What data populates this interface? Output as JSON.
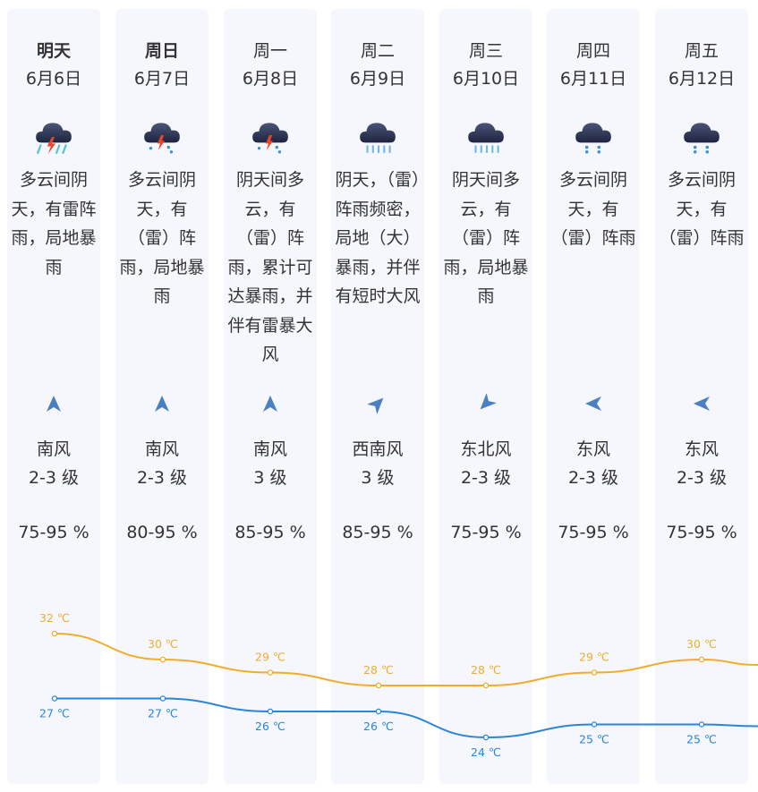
{
  "days": [
    {
      "day": "明天",
      "date": "6月6日",
      "desc": "多云间阴天，有雷阵雨，局地暴雨",
      "icon": "thunderstorm-icon",
      "wind": "南风",
      "level": "2-3 级",
      "humidity": "75-95 %",
      "high": "32 ℃",
      "low": "27 ℃",
      "high_value": 32,
      "low_value": 27,
      "wind_dir_deg": 0
    },
    {
      "day": "周日",
      "date": "6月7日",
      "desc": "多云间阴天，有（雷）阵雨，局地暴雨",
      "icon": "thunder-shower-icon",
      "wind": "南风",
      "level": "2-3 级",
      "humidity": "80-95 %",
      "high": "30 ℃",
      "low": "27 ℃",
      "high_value": 30,
      "low_value": 27,
      "wind_dir_deg": 0
    },
    {
      "day": "周一",
      "date": "6月8日",
      "desc": "阴天间多云，有（雷）阵雨，累计可达暴雨，并伴有雷暴大风",
      "icon": "thunder-shower-icon",
      "wind": "南风",
      "level": "3 级",
      "humidity": "85-95 %",
      "high": "29 ℃",
      "low": "26 ℃",
      "high_value": 29,
      "low_value": 26,
      "wind_dir_deg": 0
    },
    {
      "day": "周二",
      "date": "6月9日",
      "desc": "阴天，（雷）阵雨频密，局地（大）暴雨，并伴有短时大风",
      "icon": "heavy-rain-icon",
      "wind": "西南风",
      "level": "3 级",
      "humidity": "85-95 %",
      "high": "28 ℃",
      "low": "26 ℃",
      "high_value": 28,
      "low_value": 26,
      "wind_dir_deg": 45
    },
    {
      "day": "周三",
      "date": "6月10日",
      "desc": "阴天间多云，有（雷）阵雨，局地暴雨",
      "icon": "heavy-rain-icon",
      "wind": "东北风",
      "level": "2-3 级",
      "humidity": "75-95 %",
      "high": "28 ℃",
      "low": "24 ℃",
      "high_value": 28,
      "low_value": 24,
      "wind_dir_deg": 225
    },
    {
      "day": "周四",
      "date": "6月11日",
      "desc": "多云间阴天，有（雷）阵雨",
      "icon": "shower-icon",
      "wind": "东风",
      "level": "2-3 级",
      "humidity": "75-95 %",
      "high": "29 ℃",
      "low": "25 ℃",
      "high_value": 29,
      "low_value": 25,
      "wind_dir_deg": 270
    },
    {
      "day": "周五",
      "date": "6月12日",
      "desc": "多云间阴天，有（雷）阵雨",
      "icon": "shower-icon",
      "wind": "东风",
      "level": "2-3 级",
      "humidity": "75-95 %",
      "high": "30 ℃",
      "low": "25 ℃",
      "high_value": 30,
      "low_value": 25,
      "wind_dir_deg": 270
    }
  ],
  "colors": {
    "high_line": "#f0ad2c",
    "low_line": "#2b86d8",
    "arrow": "#4a7fc1",
    "column_bg": "#f5f7fc"
  }
}
